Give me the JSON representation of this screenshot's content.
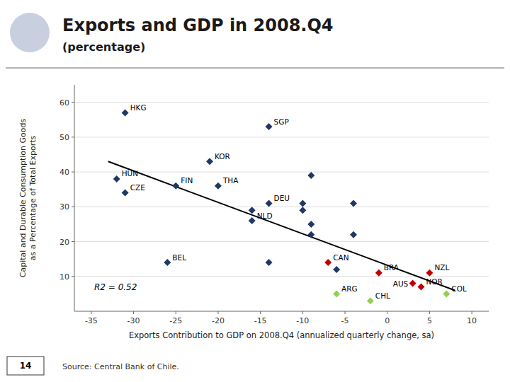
{
  "chart_data": {
    "type": "scatter",
    "title": "Exports and GDP in 2008.Q4",
    "subtitle": "(percentage)",
    "xlabel": "Exports Contribution to GDP on 2008.Q4 (annualized quarterly change, sa)",
    "ylabel": "Capital and Durable Consumption Goods\nas a Percentage of Total Exports",
    "source": "Source:  Central Bank of Chile.",
    "page_number": "14",
    "annotations": [
      {
        "text": "R2 = 0.52"
      }
    ],
    "xlim": [
      -37,
      12
    ],
    "ylim": [
      0,
      65
    ],
    "xticks": [
      -35,
      -30,
      -25,
      -20,
      -15,
      -10,
      -5,
      0,
      5,
      10
    ],
    "yticks": [
      10,
      20,
      30,
      40,
      50,
      60
    ],
    "grid": true,
    "marker": "diamond",
    "series": [
      {
        "color": "#1F3864",
        "x": [
          -31,
          -14,
          -21,
          -32,
          -25,
          -20,
          -31,
          -14,
          -16,
          -10,
          -10,
          -4,
          -16,
          -9,
          -9,
          -4,
          -9,
          -26,
          -14,
          -6
        ],
        "values": [
          57,
          53,
          43,
          38,
          36,
          36,
          34,
          31,
          29,
          31,
          29,
          31,
          26,
          25,
          22,
          22,
          39,
          14,
          14,
          12
        ],
        "labels": [
          "HKG",
          "SGP",
          "KOR",
          "HUN",
          "FIN",
          "THA",
          "CZE",
          "DEU",
          null,
          null,
          null,
          null,
          "NLD",
          null,
          null,
          null,
          null,
          "BEL",
          null,
          null
        ]
      },
      {
        "color": "#C00000",
        "x": [
          -7,
          5,
          4
        ],
        "values": [
          14,
          11,
          7
        ],
        "labels": [
          "CAN",
          "NZL",
          "NOR"
        ]
      },
      {
        "color": "#92D050",
        "x": [
          -6,
          -2,
          7
        ],
        "values": [
          5,
          3,
          5
        ],
        "labels": [
          "ARG",
          "CHL",
          "COL"
        ]
      },
      {
        "color": "#C00000",
        "x": [
          -1,
          3
        ],
        "values": [
          11,
          8
        ],
        "labels": [
          "BRA",
          "AUS"
        ]
      },
      {
        "type": "line",
        "color": "#000000",
        "x": [
          -33,
          8
        ],
        "values": [
          43,
          6
        ]
      }
    ]
  }
}
